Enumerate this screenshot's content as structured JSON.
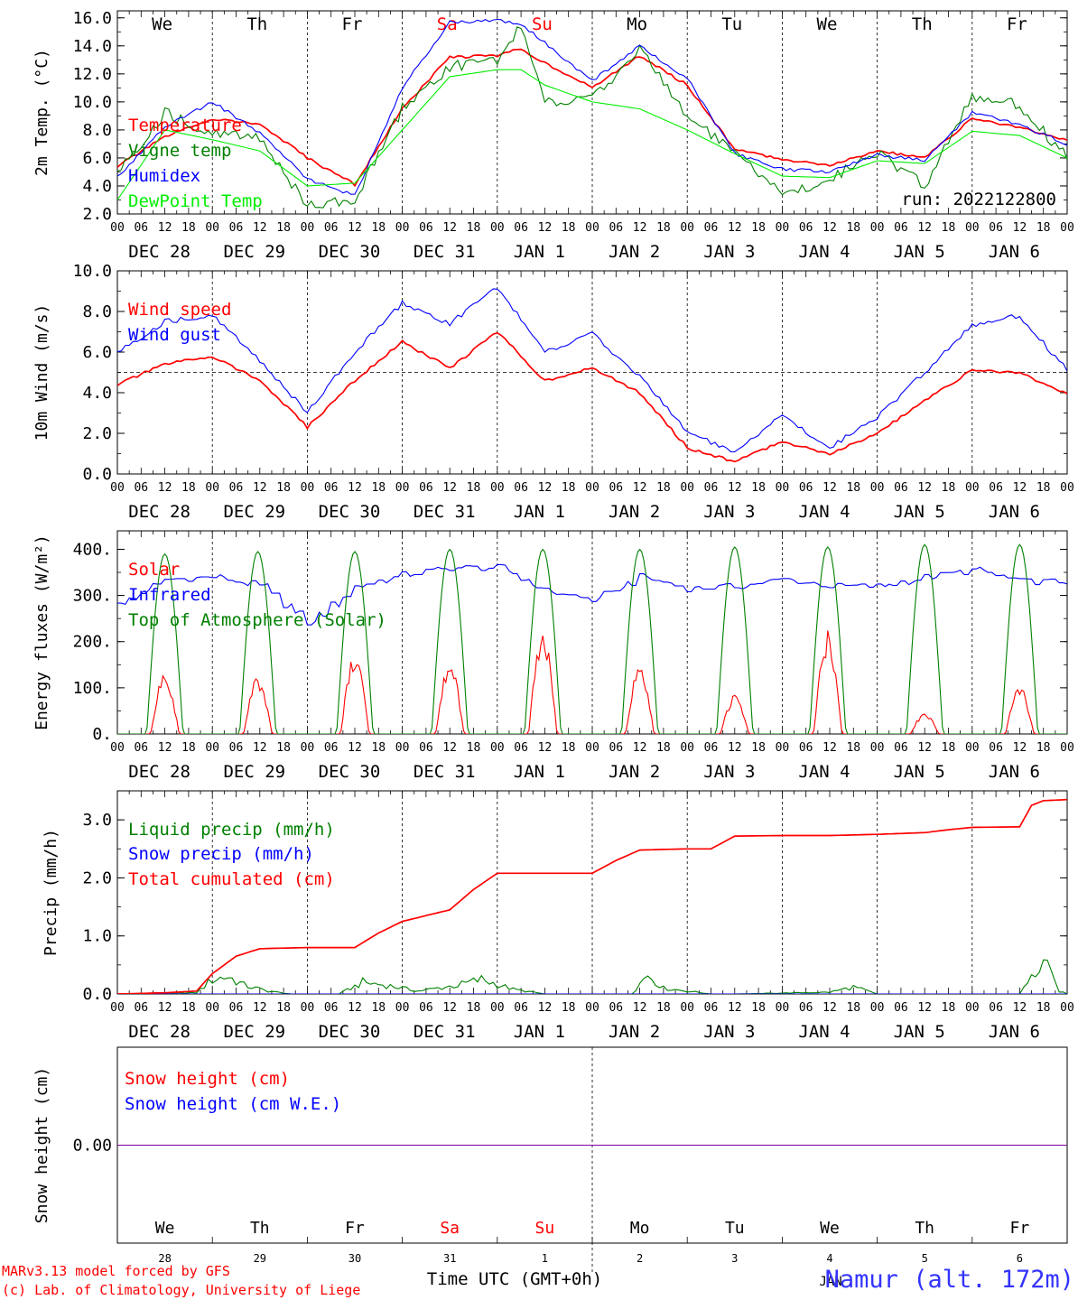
{
  "meta": {
    "days": [
      "We",
      "Th",
      "Fr",
      "Sa",
      "Su",
      "Mo",
      "Tu",
      "We",
      "Th",
      "Fr"
    ],
    "weekend_days": [
      "Sa",
      "Su"
    ],
    "dates": [
      "DEC 28",
      "DEC 29",
      "DEC 30",
      "DEC 31",
      "JAN  1",
      "JAN  2",
      "JAN  3",
      "JAN  4",
      "JAN  5",
      "JAN  6"
    ],
    "hour_labels": [
      "00",
      "06",
      "12",
      "18"
    ],
    "last_hour_label": "00",
    "run_label": "run: 2022122800",
    "credit_line1": "MARv3.13 model forced by GFS",
    "credit_line2": "(c) Lab. of Climatology, University of Liege",
    "xaxis_title": "Time UTC (GMT+0h)",
    "station": "Namur (alt. 172m)",
    "month_label": "JAN",
    "snow_day_numbers": [
      "28",
      "29",
      "30",
      "31",
      "1",
      "2",
      "3",
      "4",
      "5",
      "6"
    ],
    "colors": {
      "red": "#ff0000",
      "green": "#008000",
      "blue": "#0000ff",
      "lightgreen": "#00ee00",
      "purple": "#8000a0",
      "weekend": "#ff0000",
      "station": "#3333ff"
    }
  },
  "chart_data": [
    {
      "type": "line",
      "id": "temperature",
      "ylabel": "2m Temp. (°C)",
      "ylim": [
        2.0,
        16.5
      ],
      "yticks": [
        2.0,
        4.0,
        6.0,
        8.0,
        10.0,
        12.0,
        14.0,
        16.0
      ],
      "ytick_labels": [
        "2.0",
        "4.0",
        "6.0",
        "8.0",
        "10.0",
        "12.0",
        "14.0",
        "16.0"
      ],
      "x_unit": "hours since DEC 28 00 UTC",
      "series": [
        {
          "name": "Temperature",
          "color": "#ff0000",
          "x": [
            0,
            12,
            24,
            36,
            48,
            60,
            72,
            84,
            96,
            102,
            108,
            120,
            132,
            144,
            156,
            168,
            180,
            192,
            204,
            216,
            228,
            240
          ],
          "y": [
            5.4,
            7.5,
            8.8,
            8.4,
            6.0,
            4.1,
            9.5,
            13.2,
            13.3,
            13.8,
            12.8,
            11.0,
            13.3,
            11.2,
            6.6,
            5.9,
            5.5,
            6.5,
            6.0,
            8.8,
            8.2,
            7.2
          ]
        },
        {
          "name": "Vigne temp",
          "color": "#008000",
          "x": [
            0,
            12,
            24,
            36,
            48,
            60,
            72,
            84,
            96,
            102,
            108,
            120,
            132,
            144,
            156,
            168,
            180,
            192,
            204,
            216,
            228,
            240
          ],
          "y": [
            5.0,
            9.2,
            7.7,
            7.5,
            2.5,
            3.0,
            9.5,
            12.5,
            13.0,
            15.4,
            10.0,
            10.2,
            13.8,
            9.0,
            6.3,
            3.4,
            4.5,
            6.4,
            4.0,
            10.3,
            9.8,
            6.0
          ]
        },
        {
          "name": "Humidex",
          "color": "#0000ff",
          "x": [
            0,
            12,
            24,
            36,
            48,
            60,
            72,
            84,
            96,
            102,
            108,
            120,
            132,
            144,
            156,
            168,
            180,
            192,
            204,
            216,
            228,
            240
          ],
          "y": [
            4.6,
            8.2,
            10.0,
            7.8,
            4.5,
            3.3,
            11.0,
            15.7,
            15.8,
            15.6,
            14.2,
            11.5,
            14.0,
            11.7,
            6.3,
            5.2,
            5.0,
            6.2,
            5.8,
            9.2,
            8.4,
            7.0
          ]
        },
        {
          "name": "DewPoint Temp",
          "color": "#00ee00",
          "x": [
            0,
            12,
            24,
            36,
            48,
            60,
            72,
            84,
            96,
            102,
            108,
            120,
            132,
            144,
            156,
            168,
            180,
            192,
            204,
            216,
            228,
            240
          ],
          "y": [
            3.0,
            8.0,
            7.3,
            6.5,
            4.0,
            4.2,
            8.0,
            11.8,
            12.3,
            12.3,
            11.2,
            10.0,
            9.5,
            8.0,
            6.3,
            4.7,
            4.6,
            5.8,
            5.6,
            7.9,
            7.6,
            6.0
          ]
        }
      ]
    },
    {
      "type": "line",
      "id": "wind",
      "ylabel": "10m Wind (m/s)",
      "ylim": [
        0.0,
        10.0
      ],
      "yticks": [
        0.0,
        2.0,
        4.0,
        6.0,
        8.0,
        10.0
      ],
      "ytick_labels": [
        "0.0",
        "2.0",
        "4.0",
        "6.0",
        "8.0",
        "10.0"
      ],
      "hline": 5.0,
      "x_unit": "hours since DEC 28 00 UTC",
      "series": [
        {
          "name": "Wind speed",
          "color": "#ff0000",
          "x": [
            0,
            12,
            24,
            36,
            48,
            60,
            72,
            84,
            96,
            108,
            120,
            132,
            144,
            156,
            168,
            180,
            192,
            204,
            216,
            228,
            240
          ],
          "y": [
            4.4,
            5.4,
            5.8,
            4.6,
            2.3,
            4.6,
            6.5,
            5.2,
            7.0,
            4.6,
            5.2,
            4.0,
            1.3,
            0.6,
            1.6,
            1.0,
            2.0,
            3.6,
            5.1,
            5.0,
            3.9
          ]
        },
        {
          "name": "Wind gust",
          "color": "#0000ff",
          "x": [
            0,
            12,
            24,
            36,
            48,
            60,
            72,
            84,
            96,
            108,
            120,
            132,
            144,
            156,
            168,
            180,
            192,
            204,
            216,
            228,
            240
          ],
          "y": [
            6.0,
            7.5,
            7.8,
            5.6,
            3.0,
            6.0,
            8.4,
            7.4,
            9.2,
            6.0,
            6.9,
            4.8,
            2.1,
            1.0,
            2.9,
            1.3,
            2.8,
            5.0,
            7.3,
            7.8,
            5.1
          ]
        }
      ]
    },
    {
      "type": "line",
      "id": "energy",
      "ylabel": "Energy fluxes (W/m²)",
      "ylim": [
        0,
        440
      ],
      "yticks": [
        0,
        100,
        200,
        300,
        400
      ],
      "ytick_labels": [
        "0.",
        "100.",
        "200.",
        "300.",
        "400."
      ],
      "x_unit": "hours since DEC 28 00 UTC",
      "series": [
        {
          "name": "Solar",
          "color": "#ff0000",
          "daily_peak": [
            130,
            125,
            175,
            155,
            225,
            145,
            85,
            225,
            45,
            105
          ]
        },
        {
          "name": "Infrared",
          "color": "#0000ff",
          "x": [
            0,
            12,
            24,
            36,
            48,
            60,
            72,
            84,
            96,
            108,
            120,
            132,
            144,
            156,
            168,
            180,
            192,
            204,
            216,
            228,
            240
          ],
          "y": [
            280,
            335,
            340,
            320,
            240,
            320,
            345,
            360,
            360,
            310,
            290,
            340,
            315,
            320,
            335,
            320,
            320,
            340,
            355,
            330,
            330
          ]
        },
        {
          "name": "Top of Atmosphere (Solar)",
          "color": "#008000",
          "daily_peak": [
            390,
            395,
            395,
            400,
            400,
            400,
            405,
            405,
            410,
            410
          ]
        }
      ]
    },
    {
      "type": "line",
      "id": "precip",
      "ylabel": "Precip (mm/h)",
      "ylim": [
        0.0,
        3.5
      ],
      "yticks": [
        0.0,
        1.0,
        2.0,
        3.0
      ],
      "ytick_labels": [
        "0.0",
        "1.0",
        "2.0",
        "3.0"
      ],
      "x_unit": "hours since DEC 28 00 UTC",
      "series": [
        {
          "name": "Liquid precip (mm/h)",
          "color": "#008000",
          "x": [
            0,
            20,
            24,
            28,
            32,
            38,
            44,
            56,
            62,
            68,
            76,
            86,
            92,
            100,
            108,
            130,
            134,
            138,
            150,
            156,
            180,
            186,
            192,
            216,
            228,
            234,
            238,
            240
          ],
          "y": [
            0,
            0.02,
            0.25,
            0.3,
            0.15,
            0.05,
            0,
            0,
            0.2,
            0.15,
            0.05,
            0.15,
            0.25,
            0.08,
            0,
            0,
            0.35,
            0.1,
            0,
            0,
            0.03,
            0.12,
            0,
            0,
            0,
            0.55,
            0.05,
            0
          ]
        },
        {
          "name": "Snow precip (mm/h)",
          "color": "#0000ff",
          "x": [
            0,
            240
          ],
          "y": [
            0,
            0
          ]
        },
        {
          "name": "Total cumulated (cm)",
          "color": "#ff0000",
          "x": [
            0,
            12,
            20,
            24,
            30,
            36,
            48,
            60,
            66,
            72,
            84,
            90,
            96,
            108,
            120,
            126,
            132,
            144,
            150,
            156,
            168,
            180,
            192,
            204,
            210,
            216,
            228,
            231,
            234,
            240
          ],
          "y": [
            0,
            0.02,
            0.05,
            0.35,
            0.65,
            0.78,
            0.8,
            0.8,
            1.05,
            1.25,
            1.45,
            1.8,
            2.08,
            2.08,
            2.08,
            2.3,
            2.48,
            2.5,
            2.5,
            2.72,
            2.73,
            2.73,
            2.75,
            2.78,
            2.83,
            2.87,
            2.88,
            3.25,
            3.33,
            3.35
          ]
        }
      ]
    },
    {
      "type": "line",
      "id": "snow",
      "ylabel": "Snow height (cm)",
      "ylim": [
        -1,
        1
      ],
      "yticks": [
        0.0
      ],
      "ytick_labels": [
        "0.00"
      ],
      "x_unit": "hours since DEC 28 00 UTC",
      "series": [
        {
          "name": "Snow height (cm)",
          "color": "#ff0000",
          "x": [
            0,
            240
          ],
          "y": [
            0,
            0
          ]
        },
        {
          "name": "Snow height (cm W.E.)",
          "color": "#0000ff",
          "x": [
            0,
            240
          ],
          "y": [
            0,
            0
          ]
        }
      ]
    }
  ]
}
